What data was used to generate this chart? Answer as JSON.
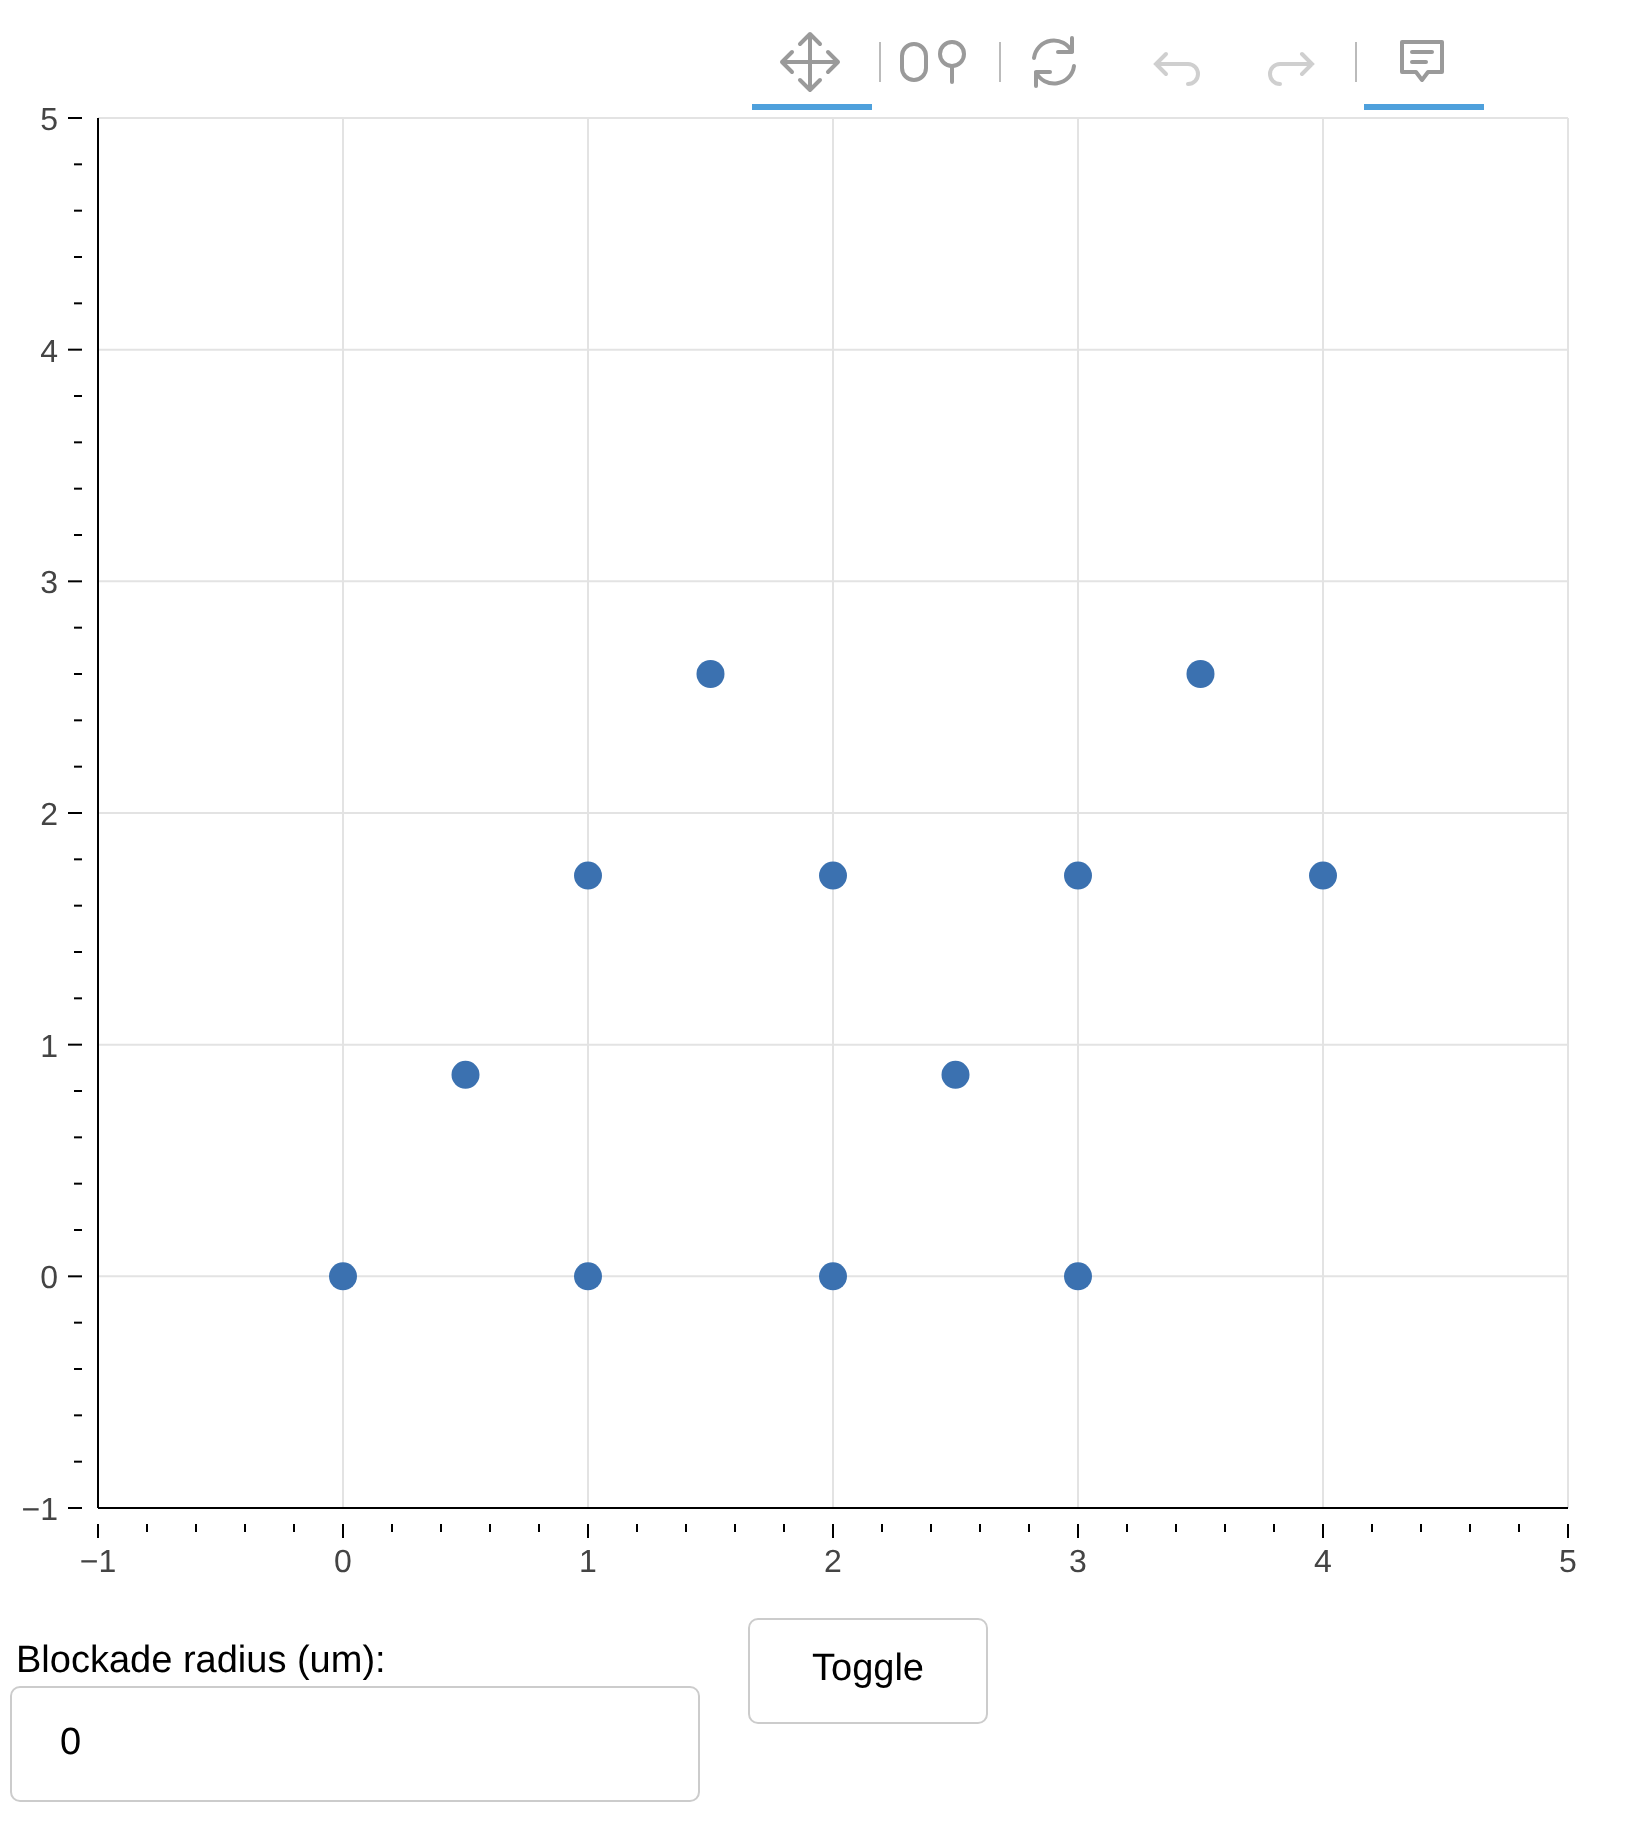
{
  "chart_data": {
    "type": "scatter",
    "x": [
      0,
      1,
      2,
      3,
      0.5,
      2.5,
      1,
      2,
      3,
      4,
      1.5,
      3.5
    ],
    "series": [
      {
        "color": "#3b71b0",
        "values": [
          0,
          0,
          0,
          0,
          0.87,
          0.87,
          1.73,
          1.73,
          1.73,
          1.73,
          2.6,
          2.6
        ]
      }
    ],
    "xlim": [
      -1,
      5
    ],
    "ylim": [
      -1,
      5
    ],
    "xticks": [
      {
        "value": -1,
        "label": "−1"
      },
      {
        "value": -0.8,
        "label": null
      },
      {
        "value": -0.6,
        "label": null
      },
      {
        "value": -0.4,
        "label": null
      },
      {
        "value": -0.2,
        "label": null
      },
      0,
      {
        "value": 0.2,
        "label": null
      },
      {
        "value": 0.4,
        "label": null
      },
      {
        "value": 0.6,
        "label": null
      },
      {
        "value": 0.8,
        "label": null
      },
      1,
      {
        "value": 1.2,
        "label": null
      },
      {
        "value": 1.4,
        "label": null
      },
      {
        "value": 1.6,
        "label": null
      },
      {
        "value": 1.8,
        "label": null
      },
      2,
      {
        "value": 2.2,
        "label": null
      },
      {
        "value": 2.4,
        "label": null
      },
      {
        "value": 2.6,
        "label": null
      },
      {
        "value": 2.8,
        "label": null
      },
      3,
      {
        "value": 3.2,
        "label": null
      },
      {
        "value": 3.4,
        "label": null
      },
      {
        "value": 3.6,
        "label": null
      },
      {
        "value": 3.8,
        "label": null
      },
      4,
      {
        "value": 4.2,
        "label": null
      },
      {
        "value": 4.4,
        "label": null
      },
      {
        "value": 4.6,
        "label": null
      },
      {
        "value": 4.8,
        "label": null
      },
      5
    ],
    "yticks": [
      {
        "value": -1,
        "label": "−1"
      },
      {
        "value": -0.8,
        "label": null
      },
      {
        "value": -0.6,
        "label": null
      },
      {
        "value": -0.4,
        "label": null
      },
      {
        "value": -0.2,
        "label": null
      },
      0,
      {
        "value": 0.2,
        "label": null
      },
      {
        "value": 0.4,
        "label": null
      },
      {
        "value": 0.6,
        "label": null
      },
      {
        "value": 0.8,
        "label": null
      },
      1,
      {
        "value": 1.2,
        "label": null
      },
      {
        "value": 1.4,
        "label": null
      },
      {
        "value": 1.6,
        "label": null
      },
      {
        "value": 1.8,
        "label": null
      },
      2,
      {
        "value": 2.2,
        "label": null
      },
      {
        "value": 2.4,
        "label": null
      },
      {
        "value": 2.6,
        "label": null
      },
      {
        "value": 2.8,
        "label": null
      },
      3,
      {
        "value": 3.2,
        "label": null
      },
      {
        "value": 3.4,
        "label": null
      },
      {
        "value": 3.6,
        "label": null
      },
      {
        "value": 3.8,
        "label": null
      },
      4,
      {
        "value": 4.2,
        "label": null
      },
      {
        "value": 4.4,
        "label": null
      },
      {
        "value": 4.6,
        "label": null
      },
      {
        "value": 4.8,
        "label": null
      },
      5
    ],
    "grid": true,
    "marker": "circle",
    "annotations": [
      "Blockade radius (um):",
      "0",
      "Toggle"
    ]
  }
}
